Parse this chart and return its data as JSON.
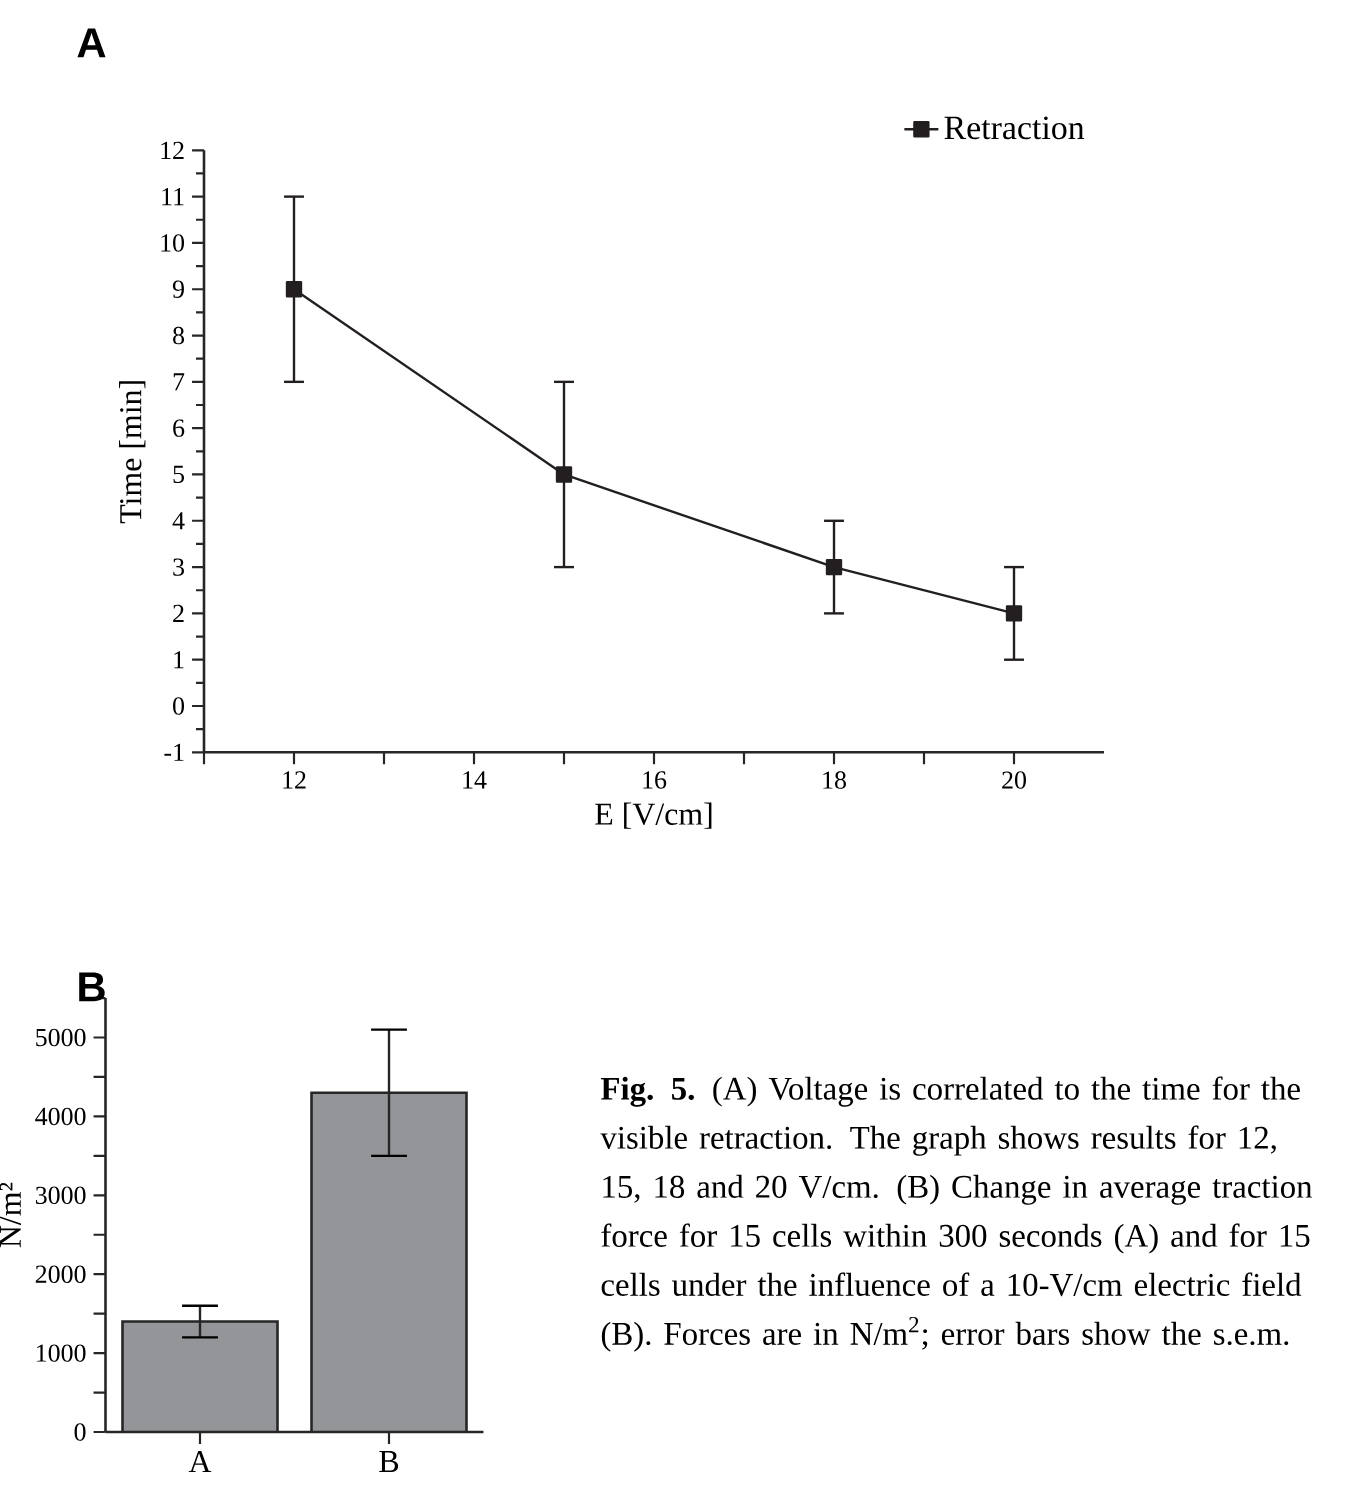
{
  "chart_data": [
    {
      "type": "line",
      "title": "A",
      "xlabel": "E [V/cm]",
      "ylabel": "Time [min]",
      "x": [
        12,
        15,
        18,
        20
      ],
      "series": [
        {
          "name": "Retraction",
          "color": "#231f20",
          "values": [
            9,
            5,
            3,
            2
          ],
          "errors": [
            2,
            2,
            1,
            1
          ]
        }
      ],
      "xlim": [
        11,
        21
      ],
      "ylim": [
        -1,
        12
      ],
      "xticks": [
        {
          "value": 11,
          "label": null
        },
        12,
        {
          "value": 13,
          "label": null
        },
        14,
        {
          "value": 15,
          "label": null
        },
        16,
        {
          "value": 17,
          "label": null
        },
        18,
        {
          "value": 19,
          "label": null
        },
        20
      ],
      "yticks": [
        -1,
        0,
        1,
        2,
        3,
        4,
        5,
        6,
        7,
        8,
        9,
        10,
        11,
        12
      ],
      "marker": "square",
      "line_style": "solid",
      "legend": "top right"
    },
    {
      "type": "bar",
      "title": "B",
      "ylabel": "N/m²",
      "categories": [
        "A",
        "B"
      ],
      "values": [
        1400,
        4300
      ],
      "errors": [
        200,
        800
      ],
      "color": "#939598",
      "ylim": [
        0,
        5500
      ],
      "yticks": [
        0,
        {
          "value": 500,
          "label": null
        },
        1000,
        {
          "value": 1500,
          "label": null
        },
        2000,
        {
          "value": 2500,
          "label": null
        },
        3000,
        {
          "value": 3500,
          "label": null
        },
        4000,
        {
          "value": 4500,
          "label": null
        },
        5000,
        {
          "value": 5500,
          "label": null
        }
      ],
      "annotations": [
        "**Fig. 5.** (A) Voltage is correlated to the time for the visible retraction. The graph shows results for 12, 15, 18 and 20 V/cm. (B) Change in average traction force for 15 cells within 300 seconds (A) and for 15 cells under the influence of a 10-V/cm electric field (B). Forces are in N/m$^{2}$; error bars show the s.e.m."
      ]
    }
  ]
}
